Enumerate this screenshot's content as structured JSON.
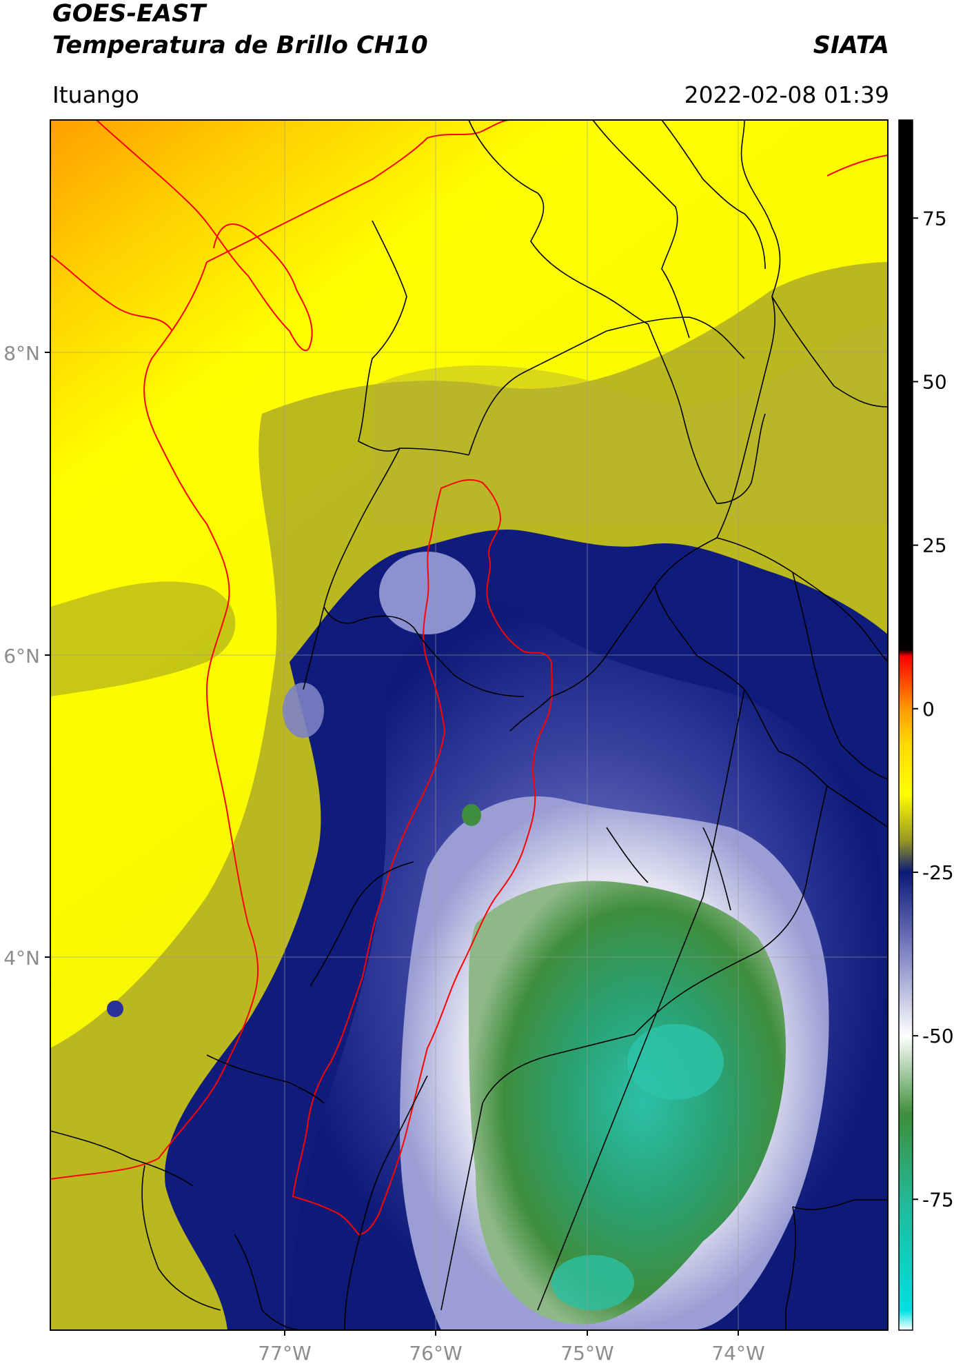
{
  "header": {
    "title_line1": "GOES-EAST",
    "title_line2": "Temperatura de Brillo CH10",
    "brand": "SIATA",
    "location": "Ituango",
    "timestamp": "2022-02-08 01:39"
  },
  "map": {
    "lat_labels": [
      "8°N",
      "6°N",
      "4°N"
    ],
    "lon_labels": [
      "77°W",
      "76°W",
      "75°W",
      "74°W"
    ],
    "colors": {
      "warm": "#ffff00",
      "orange": "#ffb000",
      "olive": "#9a9a1a",
      "navy": "#121a7a",
      "white": "#f4f4f8",
      "green": "#3f8f3f",
      "teal": "#22bba0",
      "boundary": "#000000",
      "region_outline": "#ff0000"
    }
  },
  "colorbar": {
    "ticks": [
      "75",
      "50",
      "25",
      "0",
      "-25",
      "-50",
      "-75"
    ],
    "range": [
      -95,
      90
    ],
    "stops": [
      {
        "value": -95,
        "color": "#ffffff"
      },
      {
        "value": -92,
        "color": "#00e0e0"
      },
      {
        "value": -75,
        "color": "#23b896"
      },
      {
        "value": -62,
        "color": "#3e8e3a"
      },
      {
        "value": -50,
        "color": "#ffffff"
      },
      {
        "value": -35,
        "color": "#6a6fb8"
      },
      {
        "value": -25,
        "color": "#0b1a78"
      },
      {
        "value": -20,
        "color": "#9c9a20"
      },
      {
        "value": -13,
        "color": "#ffff00"
      },
      {
        "value": -5,
        "color": "#ffd700"
      },
      {
        "value": 0,
        "color": "#ff9900"
      },
      {
        "value": 8,
        "color": "#ff0000"
      },
      {
        "value": 9,
        "color": "#000000"
      },
      {
        "value": 90,
        "color": "#000000"
      }
    ]
  }
}
